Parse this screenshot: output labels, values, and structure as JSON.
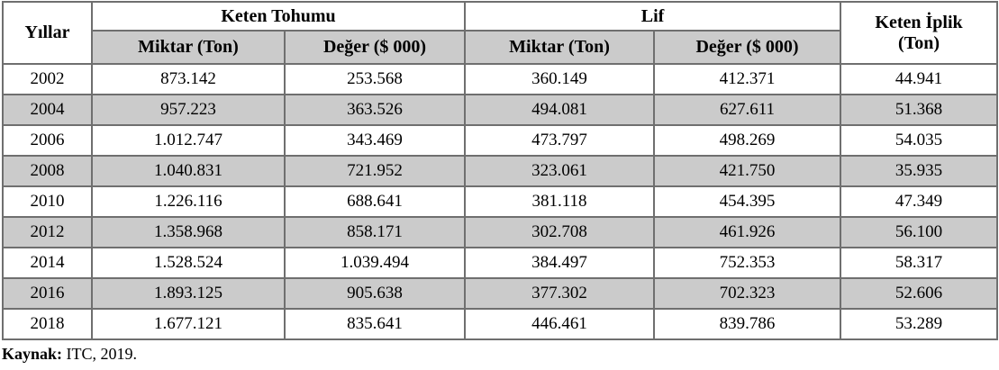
{
  "table": {
    "years_header": "Yıllar",
    "groups": [
      {
        "label": "Keten Tohumu",
        "subcols": [
          "Miktar (Ton)",
          "Değer ($ 000)"
        ]
      },
      {
        "label": "Lif",
        "subcols": [
          "Miktar (Ton)",
          "Değer ($ 000)"
        ]
      }
    ],
    "yarn_header": {
      "line1": "Keten İplik",
      "line2": "(Ton)"
    },
    "rows": [
      {
        "year": "2002",
        "values": [
          "873.142",
          "253.568",
          "360.149",
          "412.371",
          "44.941"
        ]
      },
      {
        "year": "2004",
        "values": [
          "957.223",
          "363.526",
          "494.081",
          "627.611",
          "51.368"
        ]
      },
      {
        "year": "2006",
        "values": [
          "1.012.747",
          "343.469",
          "473.797",
          "498.269",
          "54.035"
        ]
      },
      {
        "year": "2008",
        "values": [
          "1.040.831",
          "721.952",
          "323.061",
          "421.750",
          "35.935"
        ]
      },
      {
        "year": "2010",
        "values": [
          "1.226.116",
          "688.641",
          "381.118",
          "454.395",
          "47.349"
        ]
      },
      {
        "year": "2012",
        "values": [
          "1.358.968",
          "858.171",
          "302.708",
          "461.926",
          "56.100"
        ]
      },
      {
        "year": "2014",
        "values": [
          "1.528.524",
          "1.039.494",
          "384.497",
          "752.353",
          "58.317"
        ]
      },
      {
        "year": "2016",
        "values": [
          "1.893.125",
          "905.638",
          "377.302",
          "702.323",
          "52.606"
        ]
      },
      {
        "year": "2018",
        "values": [
          "1.677.121",
          "835.641",
          "446.461",
          "839.786",
          "53.289"
        ]
      }
    ]
  },
  "footer": {
    "source_label": "Kaynak:",
    "source_text": "ITC, 2019."
  },
  "colors": {
    "row_alt_bg": "#cbcbcb",
    "subheader_bg": "#cbcbcb",
    "grid_line": "#6f6f6f",
    "outer_border": "#3a3a3a"
  }
}
